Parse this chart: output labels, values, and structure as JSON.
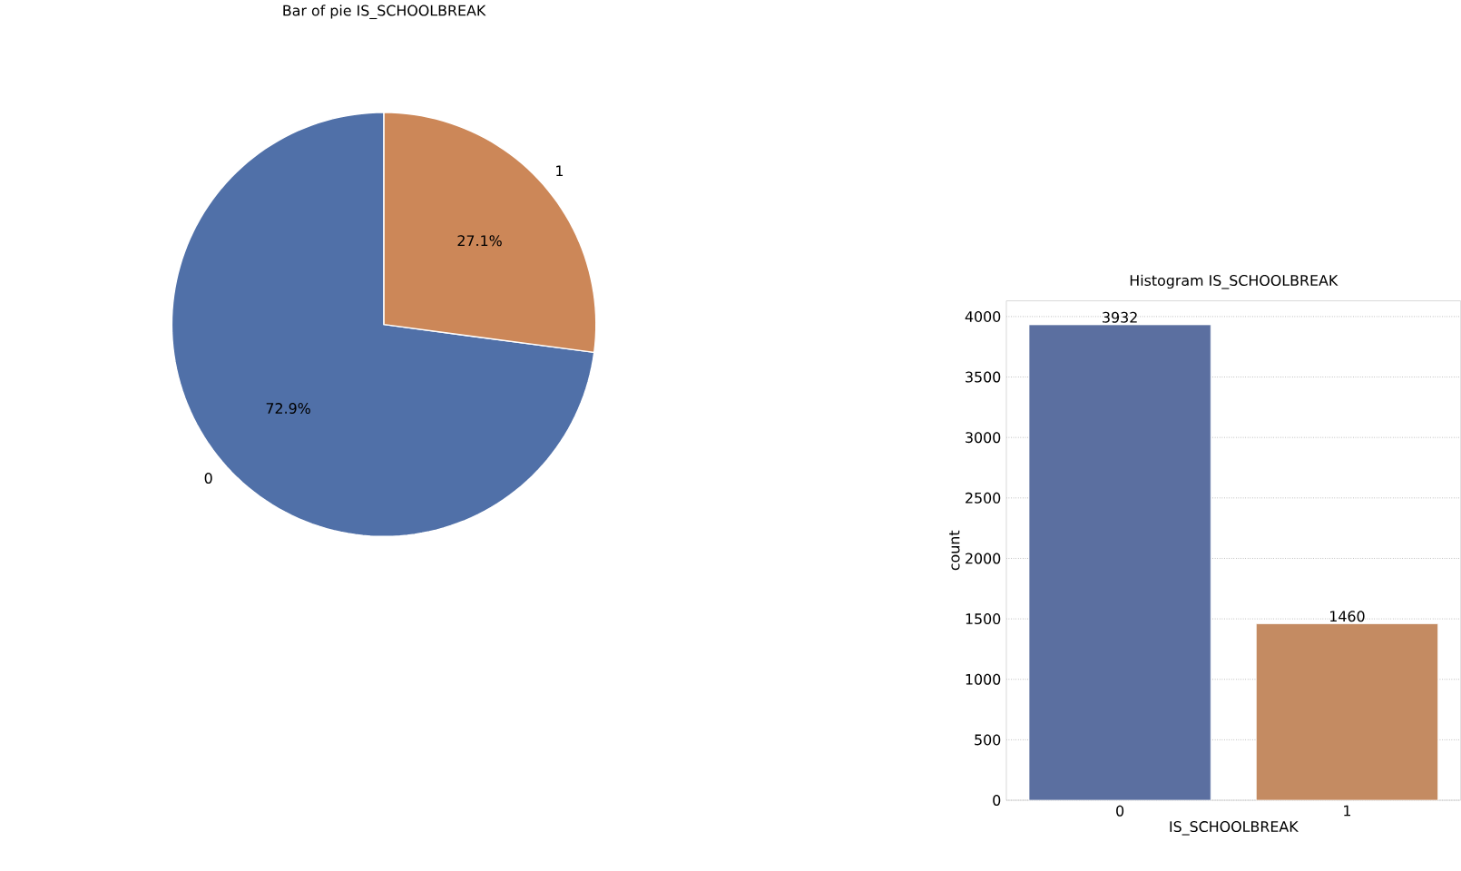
{
  "chart_data": [
    {
      "type": "pie",
      "title": "Bar of pie IS_SCHOOLBREAK",
      "categories": [
        "0",
        "1"
      ],
      "values": [
        72.9,
        27.1
      ],
      "colors": [
        "#5070a8",
        "#cc8758"
      ],
      "value_labels": [
        "72.9%",
        "27.1%"
      ]
    },
    {
      "type": "bar",
      "title": "Histogram IS_SCHOOLBREAK",
      "xlabel": "IS_SCHOOLBREAK",
      "ylabel": "count",
      "categories": [
        "0",
        "1"
      ],
      "values": [
        3932,
        1460
      ],
      "colors": [
        "#5b6fa0",
        "#c48b62"
      ],
      "ylim": [
        0,
        4130
      ],
      "yticks": [
        0,
        500,
        1000,
        1500,
        2000,
        2500,
        3000,
        3500,
        4000
      ],
      "grid": "y",
      "data_labels": true
    }
  ]
}
